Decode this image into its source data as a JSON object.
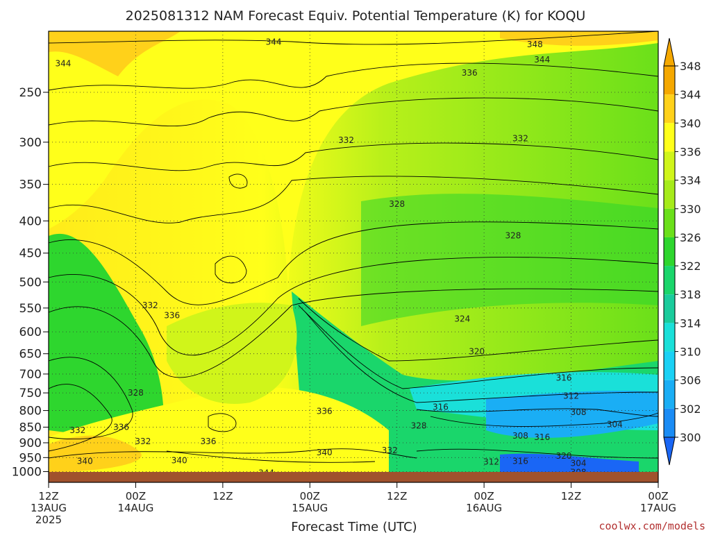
{
  "chart_data": {
    "type": "heatmap",
    "title": "2025081312 NAM Forecast Equiv. Potential Temperature (K) for KOQU",
    "xlabel": "Forecast Time (UTC)",
    "ylabel": "",
    "credit": "coolwx.com/models",
    "y_scale": "log-pressure",
    "ylim": [
      1040,
      200
    ],
    "xlim": [
      0,
      84
    ],
    "grid": true,
    "y_ticks": [
      250,
      300,
      350,
      400,
      450,
      500,
      550,
      600,
      650,
      700,
      750,
      800,
      850,
      900,
      950,
      1000
    ],
    "x_ticks": [
      {
        "hour": 0,
        "label": "12Z",
        "sub": "13AUG",
        "year": "2025"
      },
      {
        "hour": 12,
        "label": "00Z",
        "sub": "14AUG",
        "year": ""
      },
      {
        "hour": 24,
        "label": "12Z",
        "sub": "",
        "year": ""
      },
      {
        "hour": 36,
        "label": "00Z",
        "sub": "15AUG",
        "year": ""
      },
      {
        "hour": 48,
        "label": "12Z",
        "sub": "",
        "year": ""
      },
      {
        "hour": 60,
        "label": "00Z",
        "sub": "16AUG",
        "year": ""
      },
      {
        "hour": 72,
        "label": "12Z",
        "sub": "",
        "year": ""
      },
      {
        "hour": 84,
        "label": "00Z",
        "sub": "17AUG",
        "year": ""
      }
    ],
    "colorbar": {
      "labels": [
        348,
        344,
        340,
        336,
        334,
        330,
        326,
        322,
        318,
        314,
        310,
        306,
        302,
        300
      ],
      "colors": [
        "#f5a800",
        "#ffd11a",
        "#ffff1a",
        "#d0f51a",
        "#a6eb1a",
        "#6be01a",
        "#2ed62e",
        "#1ad66b",
        "#1acc9c",
        "#1ae0d9",
        "#1ad1f5",
        "#1aaef5",
        "#1a8cf5",
        "#1a66f5"
      ]
    },
    "contour_labels": [
      {
        "value": "344",
        "hour": 2,
        "p": 225
      },
      {
        "value": "344",
        "hour": 31,
        "p": 208
      },
      {
        "value": "348",
        "hour": 67,
        "p": 210
      },
      {
        "value": "344",
        "hour": 68,
        "p": 222
      },
      {
        "value": "336",
        "hour": 58,
        "p": 233
      },
      {
        "value": "332",
        "hour": 41,
        "p": 298
      },
      {
        "value": "332",
        "hour": 65,
        "p": 296
      },
      {
        "value": "328",
        "hour": 48,
        "p": 376
      },
      {
        "value": "328",
        "hour": 64,
        "p": 422
      },
      {
        "value": "324",
        "hour": 57,
        "p": 572
      },
      {
        "value": "320",
        "hour": 59,
        "p": 645
      },
      {
        "value": "316",
        "hour": 71,
        "p": 710
      },
      {
        "value": "312",
        "hour": 72,
        "p": 758
      },
      {
        "value": "316",
        "hour": 54,
        "p": 790
      },
      {
        "value": "308",
        "hour": 73,
        "p": 805
      },
      {
        "value": "304",
        "hour": 78,
        "p": 842
      },
      {
        "value": "328",
        "hour": 51,
        "p": 846
      },
      {
        "value": "308",
        "hour": 65,
        "p": 878
      },
      {
        "value": "316",
        "hour": 68,
        "p": 882
      },
      {
        "value": "320",
        "hour": 71,
        "p": 945
      },
      {
        "value": "312",
        "hour": 61,
        "p": 965
      },
      {
        "value": "316",
        "hour": 65,
        "p": 963
      },
      {
        "value": "304",
        "hour": 73,
        "p": 970
      },
      {
        "value": "308",
        "hour": 73,
        "p": 1002
      },
      {
        "value": "332",
        "hour": 14,
        "p": 545
      },
      {
        "value": "336",
        "hour": 17,
        "p": 565
      },
      {
        "value": "328",
        "hour": 12,
        "p": 750
      },
      {
        "value": "336",
        "hour": 38,
        "p": 802
      },
      {
        "value": "332",
        "hour": 4,
        "p": 860
      },
      {
        "value": "336",
        "hour": 10,
        "p": 850
      },
      {
        "value": "332",
        "hour": 13,
        "p": 895
      },
      {
        "value": "336",
        "hour": 22,
        "p": 895
      },
      {
        "value": "340",
        "hour": 5,
        "p": 962
      },
      {
        "value": "340",
        "hour": 18,
        "p": 960
      },
      {
        "value": "340",
        "hour": 38,
        "p": 933
      },
      {
        "value": "332",
        "hour": 47,
        "p": 925
      },
      {
        "value": "344",
        "hour": 30,
        "p": 1005
      }
    ]
  }
}
